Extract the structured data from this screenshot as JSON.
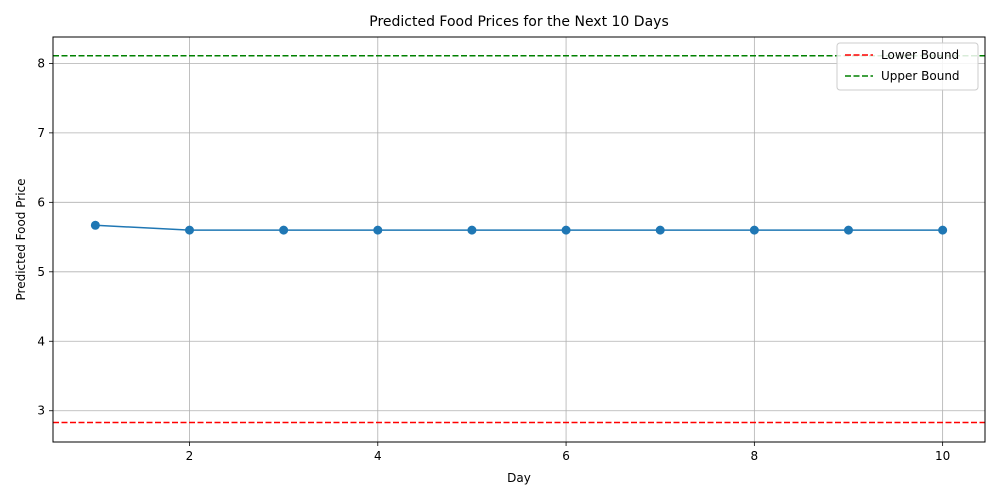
{
  "chart_data": {
    "type": "line",
    "title": "Predicted Food Prices for the Next 10 Days",
    "xlabel": "Day",
    "ylabel": "Predicted Food Price",
    "xlim": [
      0.55,
      10.45
    ],
    "ylim": [
      2.55,
      8.38
    ],
    "xticks": [
      2,
      4,
      6,
      8,
      10
    ],
    "yticks": [
      3,
      4,
      5,
      6,
      7,
      8
    ],
    "grid": true,
    "legend_position": "top-right",
    "series": [
      {
        "x": [
          1,
          2,
          3,
          4,
          5,
          6,
          7,
          8,
          9,
          10
        ],
        "values": [
          5.67,
          5.6,
          5.6,
          5.6,
          5.6,
          5.6,
          5.6,
          5.6,
          5.6,
          5.6
        ],
        "color": "#1f77b4",
        "marker": "circle"
      }
    ],
    "reference_lines": [
      {
        "name": "Lower Bound",
        "y": 2.83,
        "color": "#ff0000",
        "style": "dashed"
      },
      {
        "name": "Upper Bound",
        "y": 8.11,
        "color": "#008000",
        "style": "dashed"
      }
    ]
  }
}
